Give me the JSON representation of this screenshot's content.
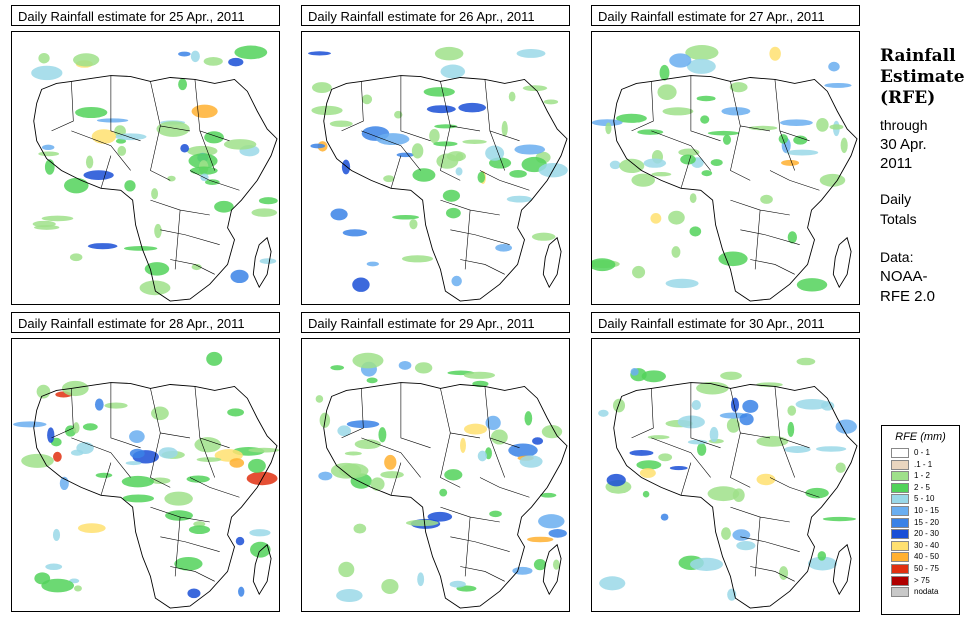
{
  "panels": [
    {
      "title": "Daily Rainfall estimate for  25 Apr., 2011"
    },
    {
      "title": "Daily Rainfall estimate for  26 Apr., 2011"
    },
    {
      "title": "Daily Rainfall estimate for  27 Apr., 2011"
    },
    {
      "title": "Daily Rainfall estimate for  28 Apr., 2011"
    },
    {
      "title": "Daily Rainfall estimate for  29 Apr., 2011"
    },
    {
      "title": "Daily Rainfall estimate for  30 Apr., 2011"
    }
  ],
  "side": {
    "title_line1": "Rainfall",
    "title_line2": "Estimate",
    "title_line3": "(RFE)",
    "through": "through",
    "date_line1": "30 Apr.",
    "date_line2": "2011",
    "daily": "Daily",
    "totals": "Totals",
    "data_label": "Data:",
    "source_line1": "NOAA-",
    "source_line2": "RFE 2.0"
  },
  "legend": {
    "title": "RFE (mm)",
    "items": [
      {
        "label": "0 - 1",
        "color": "#ffffff"
      },
      {
        "label": ".1 - 1",
        "color": "#ead6bf"
      },
      {
        "label": "1 - 2",
        "color": "#9fe08a"
      },
      {
        "label": "2 - 5",
        "color": "#52d25a"
      },
      {
        "label": "5 - 10",
        "color": "#9ad8e8"
      },
      {
        "label": "10 - 15",
        "color": "#6aaef0"
      },
      {
        "label": "15 - 20",
        "color": "#3a82e6"
      },
      {
        "label": "20 - 30",
        "color": "#1a4fd6"
      },
      {
        "label": "30 - 40",
        "color": "#ffe070"
      },
      {
        "label": "40 - 50",
        "color": "#ffb030"
      },
      {
        "label": "50 - 75",
        "color": "#e03010"
      },
      {
        "label": "> 75",
        "color": "#b00000"
      },
      {
        "label": "nodata",
        "color": "#c8c8c8"
      }
    ]
  }
}
